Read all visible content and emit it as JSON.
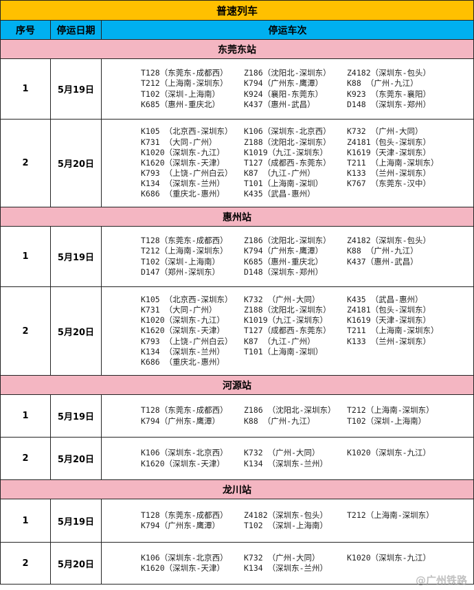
{
  "title": "普速列车",
  "headers": [
    "序号",
    "停运日期",
    "停运车次"
  ],
  "watermark": "@广州铁路",
  "colors": {
    "title_bg": "#ffc000",
    "header_bg": "#00b0f0",
    "station_bg": "#f4b6c2"
  },
  "stations": [
    {
      "name": "东莞东站",
      "rows": [
        {
          "no": "1",
          "date": "5月19日",
          "lines": [
            [
              "T128（东莞东-成都西）",
              "Z186（沈阳北-深圳东）",
              "Z4182（深圳东-包头）"
            ],
            [
              "T212（上海南-深圳东）",
              "K794（广州东-鹰潭）",
              "K88 （广州-九江）"
            ],
            [
              "T102（深圳-上海南）",
              "K924（襄阳-东莞东）",
              "K923 （东莞东-襄阳）"
            ],
            [
              "K685（惠州-重庆北）",
              "K437（惠州-武昌）",
              "D148 （深圳东-郑州）"
            ]
          ]
        },
        {
          "no": "2",
          "date": "5月20日",
          "lines": [
            [
              "K105 （北京西-深圳东）",
              "K106（深圳东-北京西）",
              "K732 （广州-大同）"
            ],
            [
              "K731 （大同-广州）",
              "Z188（沈阳北-深圳东）",
              "Z4181（包头-深圳东）"
            ],
            [
              "K1020（深圳东-九江）",
              "K1019（九江-深圳东）",
              "K1619（天津-深圳东）"
            ],
            [
              "K1620（深圳东-天津）",
              "T127（成都西-东莞东）",
              "T211 （上海南-深圳东）"
            ],
            [
              "K793 （上饶-广州白云）",
              "K87 （九江-广州）",
              "K133 （兰州-深圳东）"
            ],
            [
              "K134 （深圳东-兰州）",
              "T101（上海南-深圳）",
              "K767 （东莞东-汉中）"
            ],
            [
              "K686 （重庆北-惠州）",
              "K435（武昌-惠州）",
              ""
            ]
          ]
        }
      ]
    },
    {
      "name": "惠州站",
      "rows": [
        {
          "no": "1",
          "date": "5月19日",
          "lines": [
            [
              "T128（东莞东-成都西）",
              "Z186（沈阳北-深圳东）",
              "Z4182（深圳东-包头）"
            ],
            [
              "T212（上海南-深圳东）",
              "K794（广州东-鹰潭）",
              "K88 （广州-九江）"
            ],
            [
              "T102（深圳-上海南）",
              "K685（惠州-重庆北）",
              "K437（惠州-武昌）"
            ],
            [
              "D147（郑州-深圳东）",
              "D148（深圳东-郑州）",
              ""
            ]
          ]
        },
        {
          "no": "2",
          "date": "5月20日",
          "lines": [
            [
              "K105 （北京西-深圳东）",
              "K732 （广州-大同）",
              "K435 （武昌-惠州）"
            ],
            [
              "K731 （大同-广州）",
              "Z188（沈阳北-深圳东）",
              "Z4181（包头-深圳东）"
            ],
            [
              "K1020（深圳东-九江）",
              "K1019（九江-深圳东）",
              "K1619（天津-深圳东）"
            ],
            [
              "K1620（深圳东-天津）",
              "T127（成都西-东莞东）",
              "T211 （上海南-深圳东）"
            ],
            [
              "K793 （上饶-广州白云）",
              "K87 （九江-广州）",
              "K133 （兰州-深圳东）"
            ],
            [
              "K134 （深圳东-兰州）",
              "T101（上海南-深圳）",
              ""
            ],
            [
              "K686 （重庆北-惠州）",
              "",
              ""
            ]
          ]
        }
      ]
    },
    {
      "name": "河源站",
      "rows": [
        {
          "no": "1",
          "date": "5月19日",
          "lines": [
            [
              "T128（东莞东-成都西）",
              "Z186 （沈阳北-深圳东）",
              "T212（上海南-深圳东）"
            ],
            [
              "K794（广州东-鹰潭）",
              "K88 （广州-九江）",
              "T102（深圳-上海南）"
            ]
          ]
        },
        {
          "no": "2",
          "date": "5月20日",
          "lines": [
            [
              "K106（深圳东-北京西）",
              "K732 （广州-大同）",
              "K1020（深圳东-九江）"
            ],
            [
              "K1620（深圳东-天津）",
              "K134 （深圳东-兰州）",
              ""
            ]
          ]
        }
      ]
    },
    {
      "name": "龙川站",
      "rows": [
        {
          "no": "1",
          "date": "5月19日",
          "lines": [
            [
              "T128（东莞东-成都西）",
              "Z4182（深圳东-包头）",
              "T212（上海南-深圳东）"
            ],
            [
              "K794（广州东-鹰潭）",
              "T102 （深圳-上海南）",
              ""
            ]
          ]
        },
        {
          "no": "2",
          "date": "5月20日",
          "lines": [
            [
              "K106（深圳东-北京西）",
              "K732 （广州-大同）",
              "K1020（深圳东-九江）"
            ],
            [
              "K1620（深圳东-天津）",
              "K134 （深圳东-兰州）",
              ""
            ]
          ]
        }
      ]
    }
  ]
}
